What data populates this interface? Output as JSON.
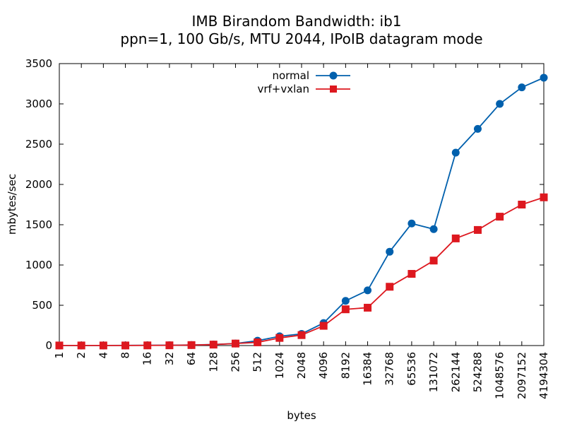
{
  "chart_data": {
    "type": "line",
    "title": "IMB Birandom Bandwidth: ib1",
    "subtitle": "ppn=1, 100 Gb/s, MTU 2044, IPoIB datagram mode",
    "xlabel": "bytes",
    "ylabel": "mbytes/sec",
    "ylim": [
      0,
      3500
    ],
    "yticks": [
      0,
      500,
      1000,
      1500,
      2000,
      2500,
      3000,
      3500
    ],
    "categories": [
      "1",
      "2",
      "4",
      "8",
      "16",
      "32",
      "64",
      "128",
      "256",
      "512",
      "1024",
      "2048",
      "4096",
      "8192",
      "16384",
      "32768",
      "65536",
      "131072",
      "262144",
      "524288",
      "1048576",
      "2097152",
      "4194304"
    ],
    "grid": false,
    "legend_position": "top-center",
    "series": [
      {
        "name": "normal",
        "color": "#0060ad",
        "marker": "circle",
        "values": [
          1,
          1,
          1,
          2,
          3,
          4,
          7,
          13,
          25,
          60,
          115,
          145,
          280,
          555,
          685,
          1165,
          1515,
          1445,
          2395,
          2690,
          3000,
          3205,
          3325
        ]
      },
      {
        "name": "vrf+vxlan",
        "color": "#dd181f",
        "marker": "square",
        "values": [
          1,
          1,
          1,
          1,
          2,
          3,
          6,
          12,
          25,
          40,
          95,
          130,
          245,
          450,
          470,
          730,
          890,
          1055,
          1330,
          1435,
          1600,
          1750,
          1840
        ]
      }
    ]
  }
}
